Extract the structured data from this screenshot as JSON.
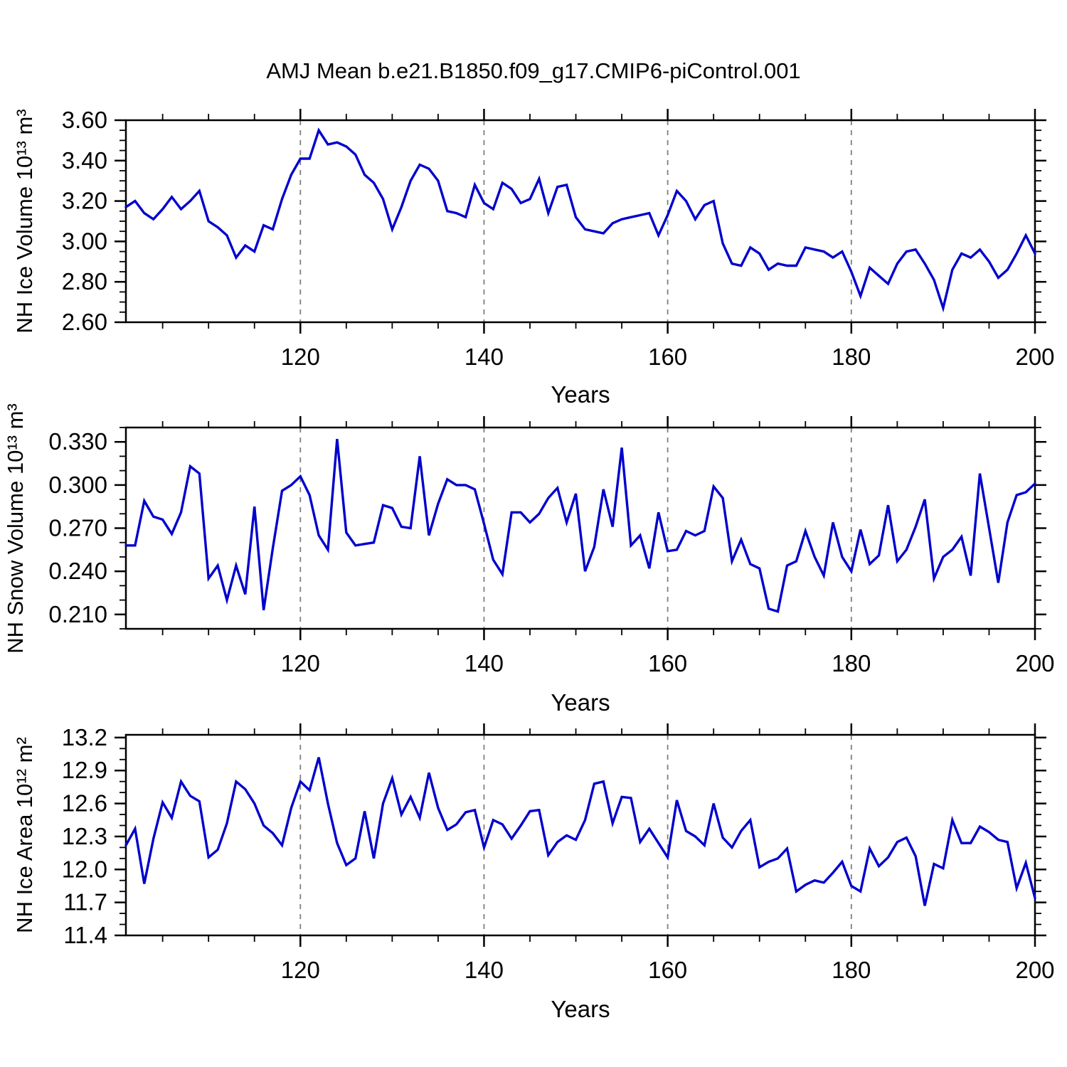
{
  "title": "AMJ Mean b.e21.B1850.f09_g17.CMIP6-piControl.001",
  "colors": {
    "line": "#0000CD",
    "grid": "#7f7f7f",
    "axis": "#000000",
    "background": "#ffffff"
  },
  "years": [
    101,
    102,
    103,
    104,
    105,
    106,
    107,
    108,
    109,
    110,
    111,
    112,
    113,
    114,
    115,
    116,
    117,
    118,
    119,
    120,
    121,
    122,
    123,
    124,
    125,
    126,
    127,
    128,
    129,
    130,
    131,
    132,
    133,
    134,
    135,
    136,
    137,
    138,
    139,
    140,
    141,
    142,
    143,
    144,
    145,
    146,
    147,
    148,
    149,
    150,
    151,
    152,
    153,
    154,
    155,
    156,
    157,
    158,
    159,
    160,
    161,
    162,
    163,
    164,
    165,
    166,
    167,
    168,
    169,
    170,
    171,
    172,
    173,
    174,
    175,
    176,
    177,
    178,
    179,
    180,
    181,
    182,
    183,
    184,
    185,
    186,
    187,
    188,
    189,
    190,
    191,
    192,
    193,
    194,
    195,
    196,
    197,
    198,
    199,
    200
  ],
  "chart_data": [
    {
      "type": "line",
      "series_name": "nh-ice-volume",
      "ylabel": "NH Ice Volume 10¹³ m³",
      "xlabel": "Years",
      "ylim": [
        2.6,
        3.6
      ],
      "yticks": [
        2.6,
        2.8,
        3.0,
        3.2,
        3.4,
        3.6
      ],
      "ytick_labels": [
        "2.60",
        "2.80",
        "3.00",
        "3.20",
        "3.40",
        "3.60"
      ],
      "yminor_step": 0.05,
      "xlim": [
        101,
        200
      ],
      "xticks": [
        120,
        140,
        160,
        180,
        200
      ],
      "xtick_labels": [
        "120",
        "140",
        "160",
        "180",
        "200"
      ],
      "xminor_start": 105,
      "xminor_step": 5,
      "grid_x": [
        120,
        140,
        160,
        180
      ],
      "grid": "vertical-dashed",
      "legend": "none",
      "values": [
        3.17,
        3.2,
        3.14,
        3.11,
        3.16,
        3.22,
        3.16,
        3.2,
        3.25,
        3.1,
        3.07,
        3.03,
        2.92,
        2.98,
        2.95,
        3.08,
        3.06,
        3.21,
        3.33,
        3.41,
        3.41,
        3.55,
        3.48,
        3.49,
        3.47,
        3.43,
        3.33,
        3.29,
        3.21,
        3.06,
        3.17,
        3.3,
        3.38,
        3.36,
        3.3,
        3.15,
        3.14,
        3.12,
        3.28,
        3.19,
        3.16,
        3.29,
        3.26,
        3.19,
        3.21,
        3.31,
        3.14,
        3.27,
        3.28,
        3.12,
        3.06,
        3.05,
        3.04,
        3.09,
        3.11,
        3.12,
        3.13,
        3.14,
        3.03,
        3.13,
        3.25,
        3.2,
        3.11,
        3.18,
        3.2,
        2.99,
        2.89,
        2.88,
        2.97,
        2.94,
        2.86,
        2.89,
        2.88,
        2.88,
        2.97,
        2.96,
        2.95,
        2.92,
        2.95,
        2.85,
        2.73,
        2.87,
        2.83,
        2.79,
        2.89,
        2.95,
        2.96,
        2.89,
        2.81,
        2.67,
        2.86,
        2.94,
        2.92,
        2.96,
        2.9,
        2.82,
        2.86,
        2.94,
        3.03,
        2.94
      ]
    },
    {
      "type": "line",
      "series_name": "nh-snow-volume",
      "ylabel": "NH Snow Volume 10¹³ m³",
      "xlabel": "Years",
      "ylim": [
        0.2,
        0.34
      ],
      "yticks": [
        0.21,
        0.24,
        0.27,
        0.3,
        0.33
      ],
      "ytick_labels": [
        "0.210",
        "0.240",
        "0.270",
        "0.300",
        "0.330"
      ],
      "yminor_step": 0.01,
      "xlim": [
        101,
        200
      ],
      "xticks": [
        120,
        140,
        160,
        180,
        200
      ],
      "xtick_labels": [
        "120",
        "140",
        "160",
        "180",
        "200"
      ],
      "xminor_start": 105,
      "xminor_step": 5,
      "grid_x": [
        120,
        140,
        160,
        180
      ],
      "grid": "vertical-dashed",
      "legend": "none",
      "values": [
        0.258,
        0.258,
        0.289,
        0.278,
        0.276,
        0.266,
        0.281,
        0.313,
        0.308,
        0.235,
        0.244,
        0.22,
        0.244,
        0.224,
        0.285,
        0.213,
        0.256,
        0.296,
        0.3,
        0.306,
        0.293,
        0.265,
        0.255,
        0.332,
        0.267,
        0.258,
        0.259,
        0.26,
        0.286,
        0.284,
        0.271,
        0.27,
        0.32,
        0.265,
        0.287,
        0.304,
        0.3,
        0.3,
        0.297,
        0.273,
        0.248,
        0.238,
        0.281,
        0.281,
        0.274,
        0.28,
        0.291,
        0.298,
        0.274,
        0.294,
        0.24,
        0.257,
        0.297,
        0.271,
        0.326,
        0.258,
        0.265,
        0.242,
        0.281,
        0.254,
        0.255,
        0.268,
        0.265,
        0.268,
        0.299,
        0.291,
        0.247,
        0.262,
        0.245,
        0.242,
        0.214,
        0.212,
        0.244,
        0.247,
        0.268,
        0.25,
        0.237,
        0.274,
        0.25,
        0.24,
        0.269,
        0.245,
        0.251,
        0.286,
        0.247,
        0.255,
        0.271,
        0.29,
        0.235,
        0.25,
        0.255,
        0.264,
        0.237,
        0.308,
        0.27,
        0.232,
        0.274,
        0.293,
        0.295,
        0.301
      ]
    },
    {
      "type": "line",
      "series_name": "nh-ice-area",
      "ylabel": "NH Ice Area 10¹² m²",
      "xlabel": "Years",
      "ylim": [
        11.4,
        13.225
      ],
      "yticks": [
        11.4,
        11.7,
        12.0,
        12.3,
        12.6,
        12.9,
        13.2
      ],
      "ytick_labels": [
        "11.4",
        "11.7",
        "12.0",
        "12.3",
        "12.6",
        "12.9",
        "13.2"
      ],
      "yminor_step": 0.1,
      "xlim": [
        101,
        200
      ],
      "xticks": [
        120,
        140,
        160,
        180,
        200
      ],
      "xtick_labels": [
        "120",
        "140",
        "160",
        "180",
        "200"
      ],
      "xminor_start": 105,
      "xminor_step": 5,
      "grid_x": [
        120,
        140,
        160,
        180
      ],
      "grid": "vertical-dashed",
      "legend": "none",
      "values": [
        12.22,
        12.37,
        11.87,
        12.28,
        12.61,
        12.47,
        12.8,
        12.67,
        12.62,
        12.11,
        12.18,
        12.42,
        12.8,
        12.73,
        12.6,
        12.4,
        12.33,
        12.22,
        12.56,
        12.8,
        12.72,
        13.02,
        12.6,
        12.24,
        12.04,
        12.1,
        12.53,
        12.1,
        12.6,
        12.83,
        12.5,
        12.66,
        12.47,
        12.88,
        12.56,
        12.36,
        12.41,
        12.52,
        12.54,
        12.2,
        12.45,
        12.41,
        12.28,
        12.4,
        12.53,
        12.54,
        12.13,
        12.25,
        12.31,
        12.27,
        12.45,
        12.78,
        12.8,
        12.42,
        12.66,
        12.65,
        12.25,
        12.37,
        12.24,
        12.11,
        12.63,
        12.35,
        12.3,
        12.22,
        12.6,
        12.29,
        12.2,
        12.35,
        12.45,
        12.02,
        12.07,
        12.1,
        12.19,
        11.8,
        11.86,
        11.9,
        11.88,
        11.97,
        12.07,
        11.85,
        11.8,
        12.19,
        12.03,
        12.11,
        12.25,
        12.29,
        12.12,
        11.67,
        12.05,
        12.01,
        12.45,
        12.24,
        12.24,
        12.39,
        12.34,
        12.27,
        12.25,
        11.83,
        12.06,
        11.74
      ]
    }
  ]
}
